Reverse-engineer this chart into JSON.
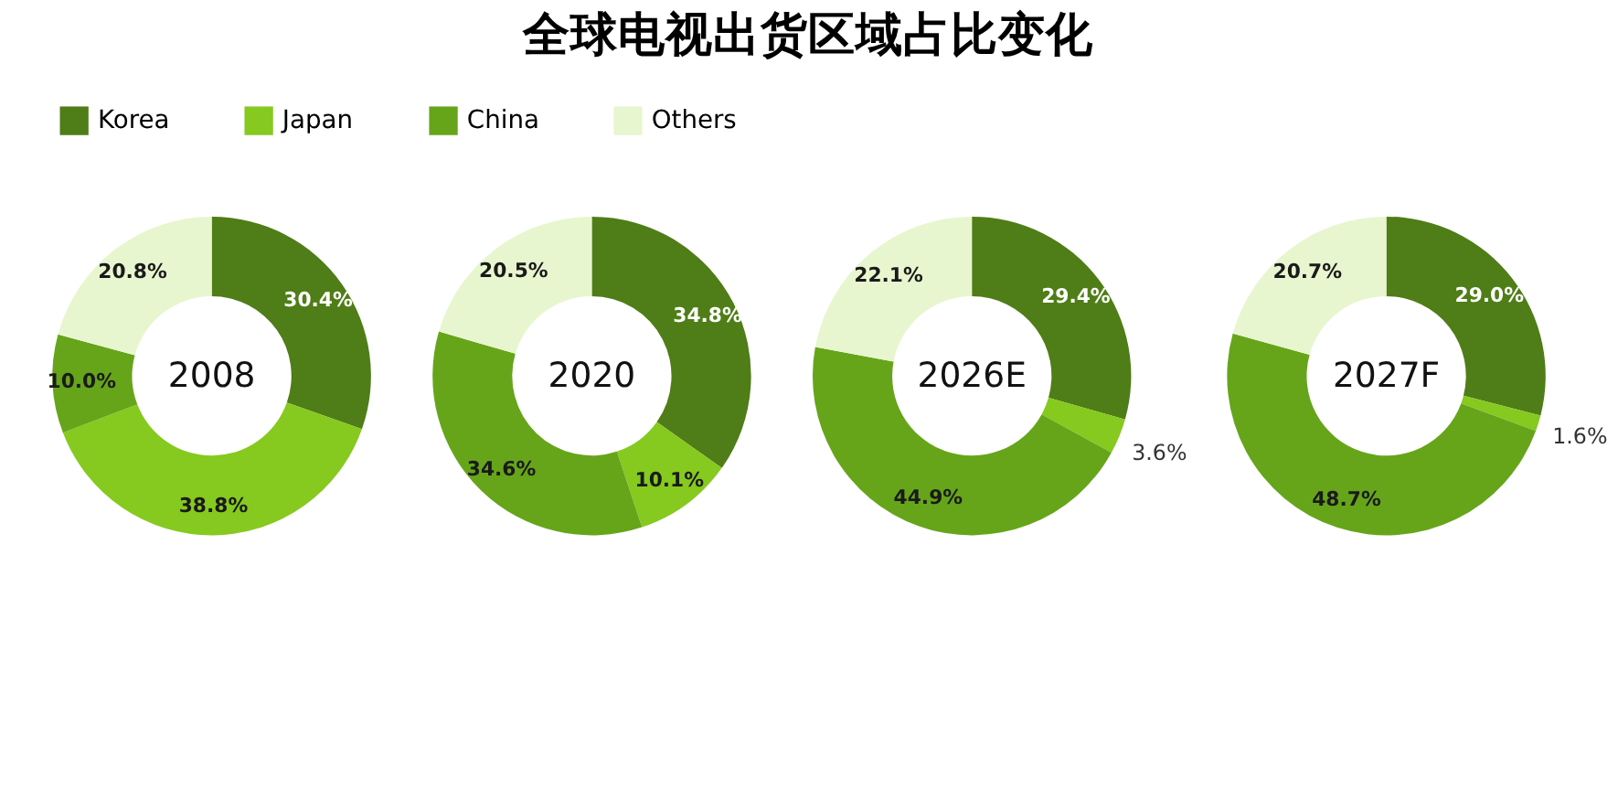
{
  "chart_data": {
    "type": "donut",
    "title": "全球电视出货区域占比变化",
    "categories": [
      "Korea",
      "Japan",
      "China",
      "Others"
    ],
    "colors": [
      "#4f7d17",
      "#86c91f",
      "#66a51a",
      "#e8f6cf"
    ],
    "legend": "top",
    "series": [
      {
        "name": "2008",
        "values": [
          30.4,
          38.8,
          10.0,
          20.8
        ],
        "value_labels": [
          "30.4%",
          "38.8%",
          "10.0%",
          "20.8%"
        ]
      },
      {
        "name": "2020",
        "values": [
          34.8,
          10.1,
          34.6,
          20.5
        ],
        "value_labels": [
          "34.8%",
          "10.1%",
          "34.6%",
          "20.5%"
        ]
      },
      {
        "name": "2026E",
        "values": [
          29.4,
          3.6,
          44.9,
          22.1
        ],
        "value_labels": [
          "29.4%",
          "3.6%",
          "44.9%",
          "22.1%"
        ]
      },
      {
        "name": "2027F",
        "values": [
          29.0,
          1.6,
          48.7,
          20.7
        ],
        "value_labels": [
          "29.0%",
          "1.6%",
          "48.7%",
          "20.7%"
        ]
      }
    ]
  }
}
